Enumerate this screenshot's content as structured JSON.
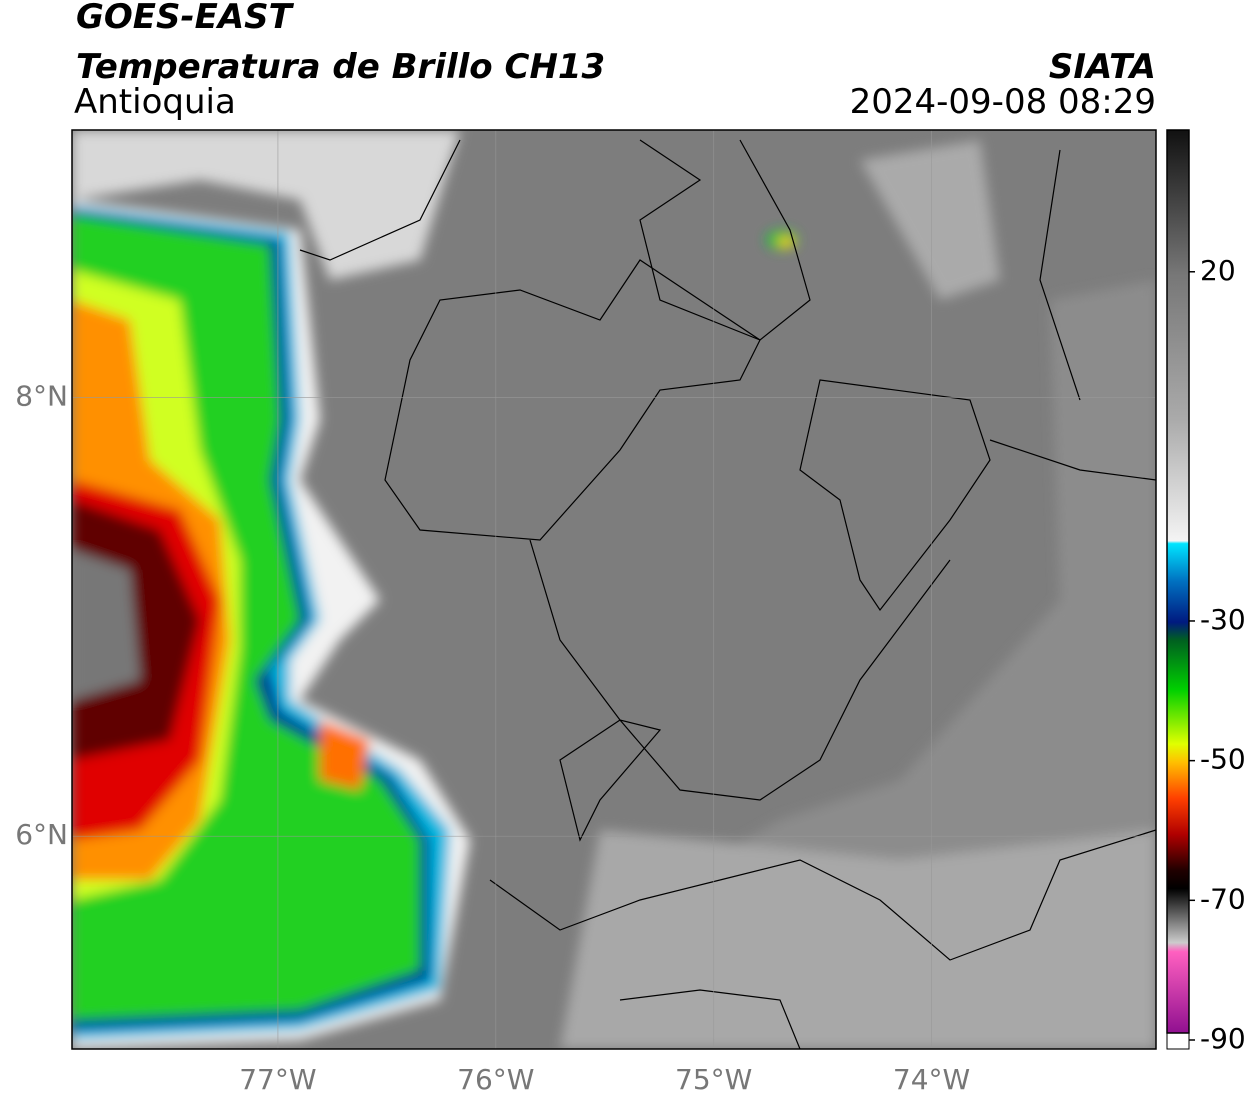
{
  "map": {
    "satellite": "GOES-EAST",
    "product": "Temperatura de Brillo CH13",
    "region": "Antioquia",
    "source": "SIATA",
    "timestamp": "2024-09-08 08:29",
    "xlim": [
      -77.945,
      -72.97
    ],
    "ylim": [
      5.03,
      9.22
    ],
    "xticks": [
      {
        "value": -77,
        "label": "77°W"
      },
      {
        "value": -76,
        "label": "76°W"
      },
      {
        "value": -75,
        "label": "75°W"
      },
      {
        "value": -74,
        "label": "74°W"
      }
    ],
    "yticks": [
      {
        "value": 6,
        "label": "6°N"
      },
      {
        "value": 8,
        "label": "8°N"
      }
    ],
    "colorbar": {
      "lim": [
        -90,
        40.3
      ],
      "ticks": [
        20,
        -30,
        -50,
        -70,
        -90
      ]
    }
  }
}
